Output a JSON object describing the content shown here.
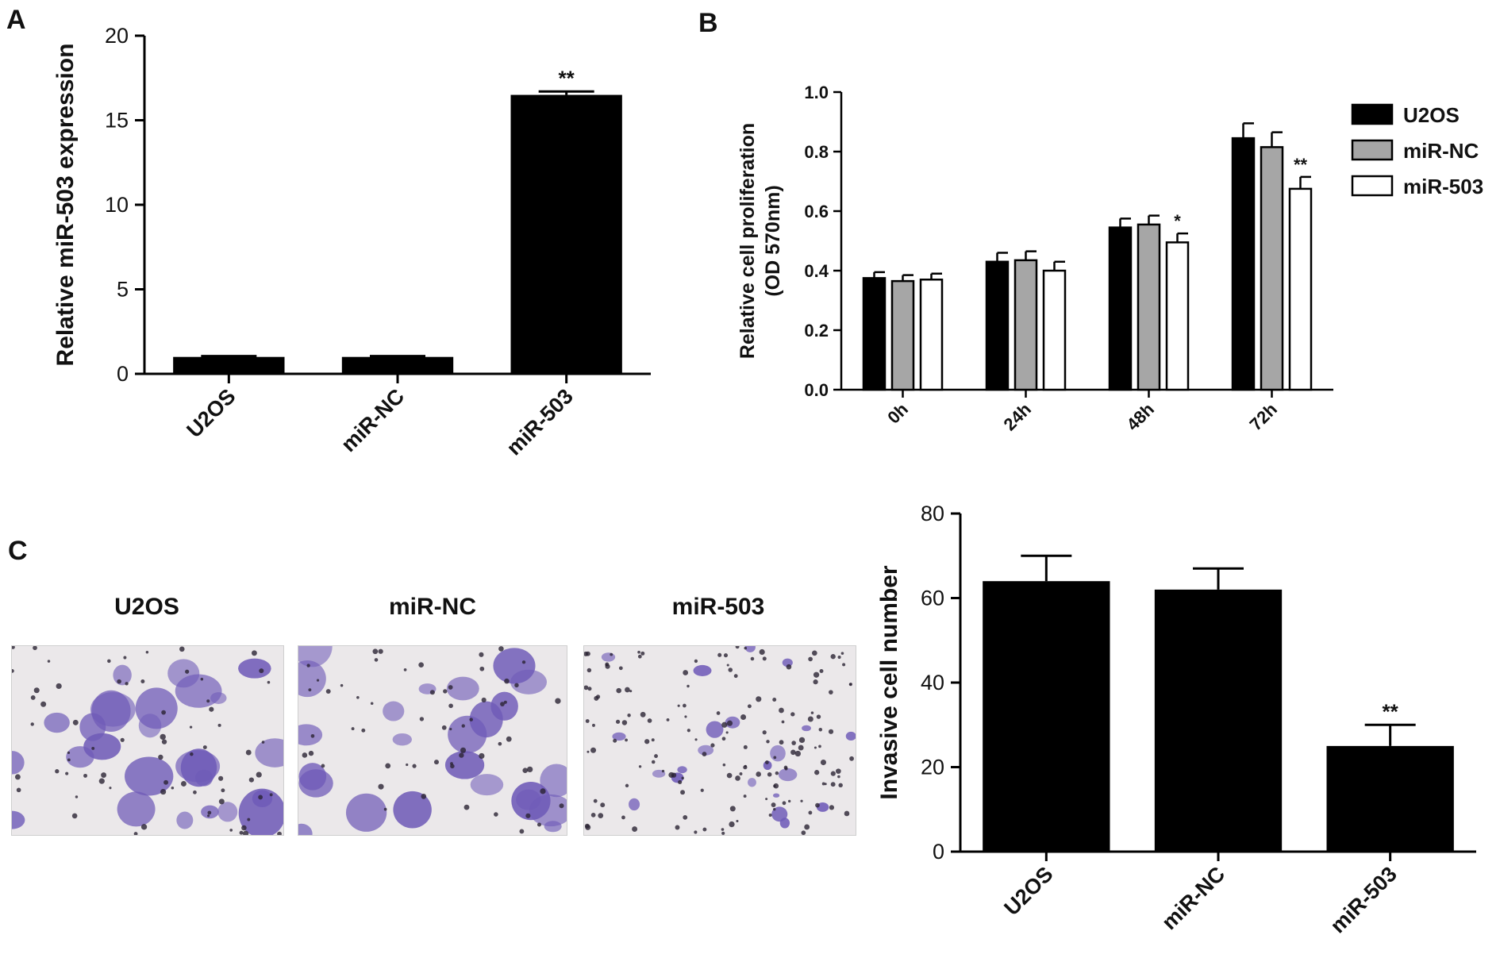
{
  "panels": {
    "a": "A",
    "b": "B",
    "c": "C"
  },
  "images": [
    {
      "label": "U2OS"
    },
    {
      "label": "miR-NC"
    },
    {
      "label": "miR-503"
    }
  ],
  "colors": {
    "bar_black": "#000000",
    "bar_grey": "#a6a6a6",
    "bar_white": "#ffffff",
    "stain_background": "#ebe8ea",
    "stain_cell": "#6f5bb8",
    "stain_dark": "#2b2333"
  },
  "chart_data": [
    {
      "id": "A",
      "type": "bar",
      "categories": [
        "U2OS",
        "miR-NC",
        "miR-503"
      ],
      "values": [
        1.0,
        1.0,
        16.5
      ],
      "errors": [
        0.05,
        0.05,
        0.2
      ],
      "annotations": [
        "",
        "",
        "**"
      ],
      "ylabel": "Relative miR-503 expression",
      "xlabel": "",
      "ylim": [
        0,
        20
      ],
      "yticks": [
        0,
        5,
        10,
        15,
        20
      ],
      "grid": false
    },
    {
      "id": "B",
      "type": "bar",
      "categories": [
        "0h",
        "24h",
        "48h",
        "72h"
      ],
      "series": [
        {
          "name": "U2OS",
          "fill": "#000000",
          "values": [
            0.375,
            0.43,
            0.545,
            0.845
          ],
          "errors": [
            0.02,
            0.03,
            0.03,
            0.05
          ]
        },
        {
          "name": "miR-NC",
          "fill": "#a6a6a6",
          "values": [
            0.365,
            0.435,
            0.555,
            0.815
          ],
          "errors": [
            0.02,
            0.03,
            0.03,
            0.05
          ]
        },
        {
          "name": "miR-503",
          "fill": "#ffffff",
          "values": [
            0.37,
            0.4,
            0.495,
            0.675
          ],
          "errors": [
            0.02,
            0.03,
            0.03,
            0.04
          ]
        }
      ],
      "annotations": [
        {
          "category": "48h",
          "series": "miR-503",
          "text": "*"
        },
        {
          "category": "72h",
          "series": "miR-503",
          "text": "**"
        }
      ],
      "ylabel": [
        "Relative cell proliferation",
        "(OD 570nm)"
      ],
      "xlabel": "",
      "ylim": [
        0,
        1.0
      ],
      "yticks": [
        "0.0",
        "0.2",
        "0.4",
        "0.6",
        "0.8",
        "1.0"
      ],
      "legend": "top-right",
      "grid": false
    },
    {
      "id": "C",
      "type": "bar",
      "categories": [
        "U2OS",
        "miR-NC",
        "miR-503"
      ],
      "values": [
        64,
        62,
        25
      ],
      "errors": [
        6,
        5,
        5
      ],
      "annotations": [
        "",
        "",
        "**"
      ],
      "ylabel": "Invasive cell number",
      "xlabel": "",
      "ylim": [
        0,
        80
      ],
      "yticks": [
        0,
        20,
        40,
        60,
        80
      ],
      "grid": false
    }
  ]
}
